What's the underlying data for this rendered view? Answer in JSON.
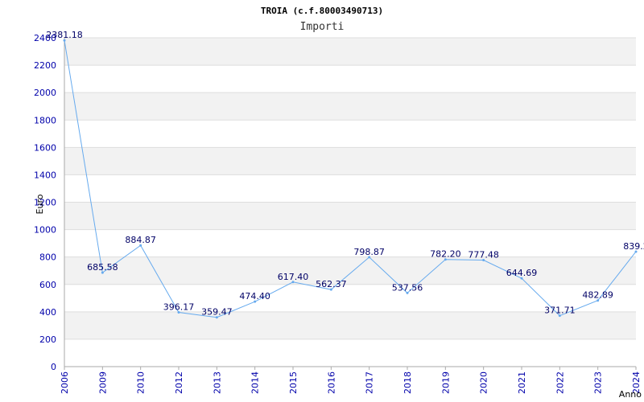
{
  "chart_data": {
    "type": "line",
    "title": "TROIA (c.f.80003490713)",
    "subtitle": "Importi",
    "xlabel": "Anno",
    "ylabel": "Euro",
    "ylim": [
      0,
      2400
    ],
    "yticks": [
      0,
      200,
      400,
      600,
      800,
      1000,
      1200,
      1400,
      1600,
      1800,
      2000,
      2200,
      2400
    ],
    "categories": [
      "2006",
      "2009",
      "2010",
      "2012",
      "2013",
      "2014",
      "2015",
      "2016",
      "2017",
      "2018",
      "2019",
      "2020",
      "2021",
      "2022",
      "2023",
      "2024"
    ],
    "values": [
      2381.18,
      685.58,
      884.87,
      396.17,
      359.47,
      474.4,
      617.4,
      562.37,
      798.87,
      537.56,
      782.2,
      777.48,
      644.69,
      371.71,
      482.89,
      839.2
    ],
    "labels": [
      "2381.18",
      "685.58",
      "884.87",
      "396.17",
      "359.47",
      "474.40",
      "617.40",
      "562.37",
      "798.87",
      "537.56",
      "782.20",
      "777.48",
      "644.69",
      "371.71",
      "482.89",
      "839.2"
    ],
    "colors": {
      "line": "#66aaee",
      "band": "#f2f2f2",
      "grid": "#dddddd",
      "axis": "#aaaaaa"
    },
    "grid": true
  }
}
